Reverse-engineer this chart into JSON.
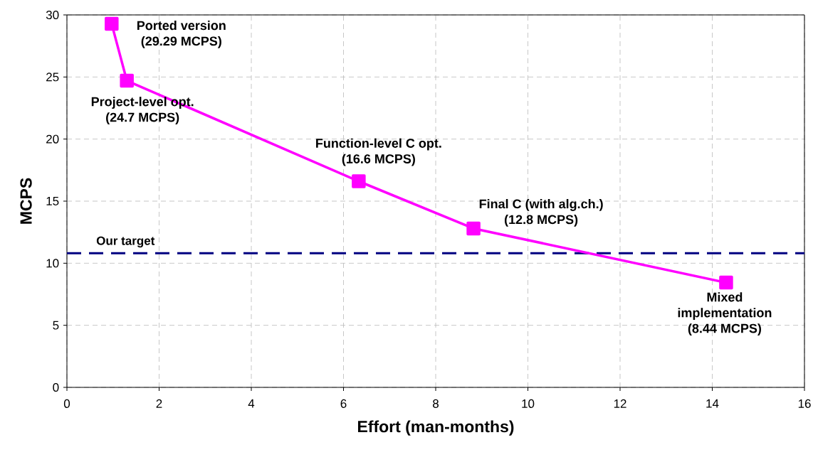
{
  "chart_data": {
    "type": "line",
    "xlabel": "Effort (man-months)",
    "ylabel": "MCPS",
    "x": [
      0.97,
      1.3,
      6.33,
      8.82,
      14.3
    ],
    "series": [
      {
        "color": "#ff00ff",
        "values": [
          29.29,
          24.7,
          16.6,
          12.8,
          8.44
        ]
      }
    ],
    "marker": "square",
    "line_style": "solid",
    "grid": true,
    "xlim": [
      0,
      16
    ],
    "xticks": [
      0,
      2,
      4,
      6,
      8,
      10,
      12,
      14,
      16
    ],
    "ylim": [
      0,
      30
    ],
    "yticks": [
      0,
      5,
      10,
      15,
      20,
      25,
      30
    ],
    "ref_lines": [
      {
        "axis": "y",
        "value": 10.8,
        "label": "Our target",
        "color": "#000080",
        "line_style": "dashed"
      }
    ],
    "annotations": [
      {
        "text": "Ported version (29.29 MCPS)",
        "x": 0.97,
        "y": 29.29
      },
      {
        "text": "Project-level opt. (24.7 MCPS)",
        "x": 1.3,
        "y": 24.7
      },
      {
        "text": "Function-level C opt. (16.6 MCPS)",
        "x": 6.33,
        "y": 16.6
      },
      {
        "text": "Final C (with alg.ch.) (12.8 MCPS)",
        "x": 8.82,
        "y": 12.8
      },
      {
        "text": "Mixed implementation (8.44 MCPS)",
        "x": 14.3,
        "y": 8.44
      }
    ]
  }
}
